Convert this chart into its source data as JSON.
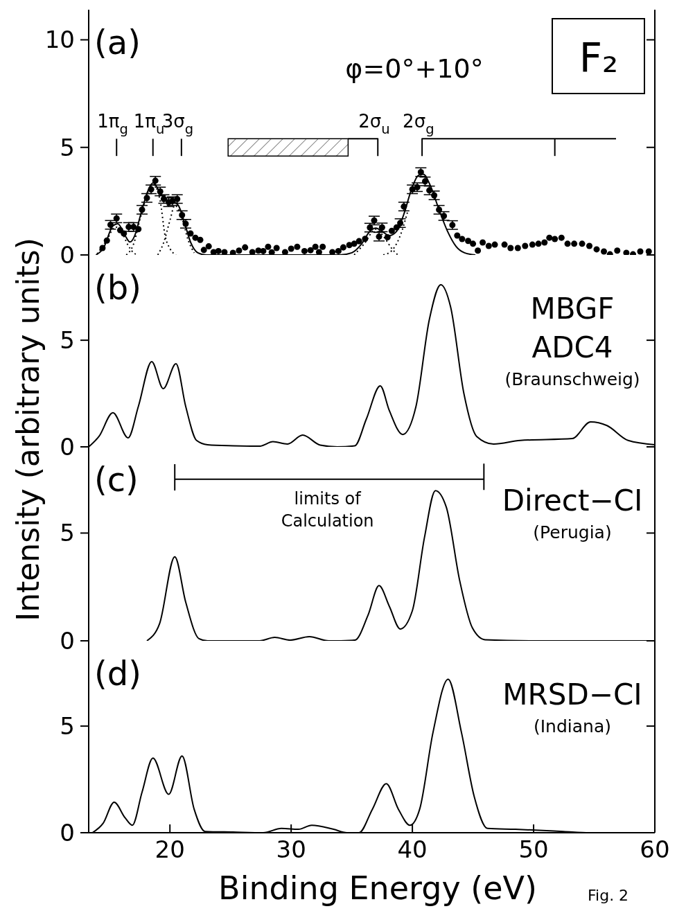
{
  "chart_data": [
    {
      "type": "scatter",
      "title": "(a)",
      "ylabel": "Intensity (arbitrary units)",
      "xlim": [
        13.3,
        60
      ],
      "xticks": [
        20,
        30,
        40,
        50,
        60
      ],
      "ylim": [
        0,
        11.4
      ],
      "yticks": [
        0,
        5,
        10
      ],
      "tick_labels": "y",
      "annotations": [
        "φ=0°+10°",
        "F₂",
        {
          "text": "1π$_{g}$",
          "x": 15.6,
          "y": 5.4
        },
        {
          "text": "1π$_{u}$",
          "x": 18.6,
          "y": 5.4
        },
        {
          "text": "3σ$_{g}$",
          "x": 20.95,
          "y": 5.4
        },
        {
          "text": "2σ$_{u}$",
          "x": 37.15,
          "y": 5.4
        },
        {
          "text": "2σ$_{g}$",
          "x": 40.8,
          "y": 5.4
        }
      ],
      "bands": [
        {
          "axis": "x",
          "from": 24.8,
          "to": 34.7,
          "color": "#000000"
        }
      ],
      "series": [
        {
          "type": "scatter",
          "marker": "circle",
          "color": "#000000",
          "x": [
            14.44,
            14.8,
            15.1,
            15.6,
            15.9,
            16.2,
            16.6,
            17.0,
            17.4,
            17.7,
            18.1,
            18.45,
            18.8,
            19.2,
            19.5,
            19.9,
            20.2,
            20.6,
            21.0,
            21.3,
            21.7,
            22.1,
            22.5,
            22.8,
            23.2,
            23.6,
            24.0,
            24.5,
            25.2,
            25.7,
            26.2,
            26.8,
            27.3,
            27.7,
            28.1,
            28.4,
            28.8,
            29.5,
            30.0,
            30.5,
            31.1,
            31.6,
            32.0,
            32.3,
            32.6,
            33.4,
            33.9,
            34.3,
            34.8,
            35.2,
            35.6,
            36.1,
            36.5,
            36.85,
            37.25,
            37.5,
            37.95,
            38.3,
            38.7,
            39.0,
            39.3,
            40.0,
            40.4,
            40.7,
            41.05,
            41.4,
            41.8,
            42.2,
            42.6,
            43.3,
            43.7,
            44.1,
            44.6,
            45.0,
            45.4,
            45.8,
            46.3,
            46.8,
            47.6,
            48.1,
            48.7,
            49.3,
            49.9,
            50.4,
            50.9,
            51.3,
            51.75,
            52.3,
            52.8,
            53.35,
            54.0,
            54.6,
            55.2,
            55.8,
            56.3,
            56.9,
            57.65,
            58.2,
            58.8,
            59.5
          ],
          "values": [
            0.32,
            0.67,
            1.4,
            1.7,
            1.15,
            1.0,
            1.3,
            1.3,
            1.2,
            2.1,
            2.65,
            3.05,
            3.45,
            2.95,
            2.6,
            2.45,
            2.5,
            2.6,
            1.85,
            1.45,
            1.0,
            0.8,
            0.7,
            0.23,
            0.4,
            0.13,
            0.18,
            0.13,
            0.1,
            0.2,
            0.35,
            0.13,
            0.2,
            0.18,
            0.38,
            0.12,
            0.32,
            0.13,
            0.29,
            0.38,
            0.18,
            0.22,
            0.38,
            0.13,
            0.38,
            0.13,
            0.18,
            0.35,
            0.46,
            0.52,
            0.64,
            0.75,
            1.27,
            1.6,
            0.85,
            1.28,
            0.82,
            1.12,
            1.28,
            1.48,
            2.25,
            3.05,
            3.15,
            3.85,
            3.42,
            3.0,
            2.77,
            2.1,
            1.81,
            1.39,
            0.9,
            0.74,
            0.65,
            0.52,
            0.2,
            0.58,
            0.42,
            0.48,
            0.48,
            0.32,
            0.32,
            0.42,
            0.48,
            0.52,
            0.58,
            0.8,
            0.74,
            0.8,
            0.52,
            0.52,
            0.52,
            0.42,
            0.26,
            0.16,
            0.03,
            0.2,
            0.1,
            0.03,
            0.16,
            0.16
          ],
          "errors": [
            null,
            null,
            0.2,
            0.2,
            null,
            null,
            0.2,
            0.2,
            null,
            0.2,
            0.2,
            0.2,
            0.2,
            0.2,
            0.2,
            0.2,
            0.2,
            0.2,
            0.2,
            0.2,
            null,
            null,
            null,
            null,
            null,
            null,
            null,
            null,
            null,
            null,
            null,
            null,
            null,
            null,
            null,
            null,
            null,
            null,
            null,
            null,
            null,
            null,
            null,
            null,
            null,
            null,
            null,
            null,
            null,
            null,
            null,
            null,
            0.2,
            0.2,
            0.2,
            0.2,
            null,
            null,
            null,
            0.2,
            0.2,
            0.2,
            0.2,
            0.2,
            0.2,
            0.2,
            0.2,
            0.2,
            0.2,
            0.2,
            null,
            null,
            null,
            null,
            null,
            null,
            null,
            null,
            null,
            null,
            null,
            null,
            null,
            null,
            null,
            null,
            null,
            null,
            null,
            null,
            null,
            null,
            null,
            null,
            null,
            null,
            null,
            null,
            null,
            null
          ]
        },
        {
          "type": "line",
          "color": "#000000",
          "x": [
            13.9,
            14.5,
            15.3,
            15.7,
            16.3,
            16.7,
            17.1,
            17.6,
            18.2,
            18.6,
            19.1,
            19.6,
            20.2,
            20.7,
            21.2,
            21.7,
            22.3,
            23.0,
            34.0,
            35.0,
            35.8,
            36.5,
            37.0,
            37.5,
            38.1,
            38.7,
            39.3,
            39.9,
            40.5,
            40.9,
            41.5,
            42.2,
            42.9,
            43.6,
            44.3,
            45.2
          ],
          "values": [
            0,
            0.3,
            1.35,
            1.45,
            0.9,
            0.6,
            0.9,
            1.9,
            3.0,
            3.35,
            3.0,
            2.6,
            2.5,
            2.3,
            1.5,
            0.6,
            0.1,
            0,
            0,
            0.1,
            0.5,
            1.1,
            1.25,
            1.1,
            0.9,
            1.1,
            1.9,
            3.0,
            3.7,
            3.75,
            3.2,
            2.1,
            1.1,
            0.4,
            0.1,
            0
          ]
        },
        {
          "type": "line",
          "line_style": "dotted",
          "color": "#000000",
          "x": [
            14.0,
            14.8,
            15.5,
            16.0,
            16.5,
            17.0,
            17.4
          ],
          "values": [
            0.05,
            0.7,
            1.3,
            1.1,
            0.5,
            0.1,
            0
          ]
        },
        {
          "type": "line",
          "line_style": "dotted",
          "color": "#000000",
          "x": [
            16.4,
            17.0,
            17.6,
            18.6,
            19.2,
            19.6,
            20.0,
            20.5
          ],
          "values": [
            0,
            0.5,
            1.8,
            3.3,
            2.5,
            0.9,
            0.3,
            0
          ]
        },
        {
          "type": "line",
          "line_style": "dotted",
          "color": "#000000",
          "x": [
            19.0,
            19.5,
            20.0,
            20.4,
            21.0,
            21.5,
            22.0
          ],
          "values": [
            0,
            0.6,
            1.6,
            2.3,
            1.7,
            0.7,
            0.1
          ]
        },
        {
          "type": "line",
          "line_style": "dotted",
          "color": "#000000",
          "x": [
            35.2,
            36.0,
            37.0,
            37.7,
            38.3,
            38.8
          ],
          "values": [
            0,
            0.5,
            1.2,
            0.8,
            0.3,
            0
          ]
        },
        {
          "type": "line",
          "line_style": "dotted",
          "color": "#000000",
          "x": [
            37.6,
            38.3,
            39.0,
            39.6
          ],
          "values": [
            0,
            0.2,
            0.9,
            2.0
          ]
        },
        {
          "type": "line",
          "color": "#000000",
          "x": [
            15.6,
            15.6
          ],
          "values": [
            5.4,
            4.6
          ]
        },
        {
          "type": "line",
          "color": "#000000",
          "x": [
            18.6,
            18.6
          ],
          "values": [
            5.4,
            4.6
          ]
        },
        {
          "type": "line",
          "color": "#000000",
          "x": [
            20.95,
            20.95
          ],
          "values": [
            5.4,
            4.6
          ]
        },
        {
          "type": "line",
          "color": "#000000",
          "x": [
            34.7,
            37.15,
            37.15
          ],
          "values": [
            5.4,
            5.4,
            4.6
          ]
        },
        {
          "type": "line",
          "color": "#000000",
          "x": [
            40.8,
            40.8,
            56.8
          ],
          "values": [
            4.6,
            5.4,
            5.4
          ]
        },
        {
          "type": "line",
          "color": "#000000",
          "x": [
            51.75,
            51.75
          ],
          "values": [
            5.4,
            4.6
          ]
        }
      ]
    },
    {
      "type": "line",
      "title": "(b)",
      "xlim": [
        13.3,
        60
      ],
      "xticks": [
        20,
        30,
        40,
        50,
        60
      ],
      "ylim": [
        0,
        9
      ],
      "yticks": [
        0,
        5
      ],
      "tick_labels": "y",
      "annotations": [
        "MBGF",
        "ADC4",
        "(Braunschweig)"
      ],
      "series": [
        {
          "color": "#000000",
          "x": [
            13.3,
            14.15,
            15.3,
            16.55,
            17.4,
            18.5,
            19.45,
            20.5,
            21.3,
            22.2,
            23.1,
            25.2,
            27.4,
            28.5,
            29.7,
            30.95,
            32.4,
            33.8,
            35.25,
            36.2,
            37.35,
            38.1,
            39.2,
            40.3,
            41.4,
            42.35,
            43.15,
            44.25,
            45.3,
            46.7,
            48.9,
            53.2,
            54.7,
            56.05,
            57.8,
            60
          ],
          "values": [
            0,
            0.49,
            1.6,
            0.42,
            1.9,
            4.0,
            2.73,
            3.9,
            1.9,
            0.3,
            0.1,
            0.05,
            0.03,
            0.24,
            0.13,
            0.55,
            0.08,
            0,
            0.05,
            1.3,
            2.86,
            1.7,
            0.58,
            1.9,
            5.97,
            7.6,
            6.57,
            2.5,
            0.49,
            0.13,
            0.3,
            0.39,
            1.17,
            1.0,
            0.3,
            0.1
          ]
        }
      ]
    },
    {
      "type": "line",
      "title": "(c)",
      "xlim": [
        13.3,
        60
      ],
      "xticks": [
        20,
        30,
        40,
        50,
        60
      ],
      "ylim": [
        0,
        9
      ],
      "yticks": [
        0,
        5
      ],
      "tick_labels": "y",
      "annotations": [
        "Direct−CI",
        "(Perugia)",
        {
          "text": "limits of Calculation",
          "x": 33,
          "y": 7.5
        }
      ],
      "series": [
        {
          "color": "#000000",
          "x": [
            18.1,
            19.15,
            20.4,
            21.3,
            22.4,
            23.1,
            27.4,
            28.65,
            29.9,
            31.5,
            33.1,
            35.25,
            36.35,
            37.25,
            38.1,
            39.0,
            40.0,
            41.0,
            41.9,
            42.8,
            43.9,
            44.95,
            46.0,
            50,
            60
          ],
          "values": [
            0,
            0.8,
            3.9,
            1.8,
            0.1,
            0,
            0,
            0.16,
            0.03,
            0.19,
            0,
            0.03,
            1.2,
            2.56,
            1.6,
            0.55,
            1.4,
            4.8,
            6.97,
            6.2,
            2.8,
            0.6,
            0.05,
            0,
            0
          ]
        },
        {
          "color": "#000000",
          "x": [
            20.4,
            20.4,
            20.4,
            45.9,
            45.9,
            45.9
          ],
          "values": [
            8.2,
            7.0,
            7.5,
            7.5,
            8.2,
            7.0
          ]
        }
      ]
    },
    {
      "type": "line",
      "title": "(d)",
      "xlabel": "Binding Energy (eV)",
      "xlim": [
        13.3,
        60
      ],
      "xticks": [
        20,
        30,
        40,
        50,
        60
      ],
      "ylim": [
        0,
        9
      ],
      "yticks": [
        0,
        5
      ],
      "annotations": [
        "MRSD−CI",
        "(Indiana)",
        "Fig. 2"
      ],
      "series": [
        {
          "color": "#000000",
          "x": [
            13.6,
            14.5,
            15.4,
            16.3,
            16.9,
            17.7,
            18.6,
            19.9,
            21.0,
            22.0,
            22.9,
            25.2,
            27.7,
            29.2,
            30.6,
            31.7,
            33.5,
            34.6,
            35.6,
            36.7,
            37.85,
            38.85,
            39.8,
            40.6,
            41.7,
            42.95,
            44.05,
            45.1,
            46.2,
            48.5,
            52.45,
            54.6,
            60
          ],
          "values": [
            0,
            0.45,
            1.43,
            0.7,
            0.35,
            1.9,
            3.5,
            1.8,
            3.6,
            1.1,
            0.06,
            0.03,
            0,
            0.2,
            0.16,
            0.35,
            0.16,
            0,
            0,
            1.1,
            2.3,
            1.1,
            0.35,
            1.1,
            4.7,
            7.2,
            4.7,
            1.7,
            0.2,
            0.16,
            0.06,
            0,
            0
          ]
        }
      ]
    }
  ]
}
